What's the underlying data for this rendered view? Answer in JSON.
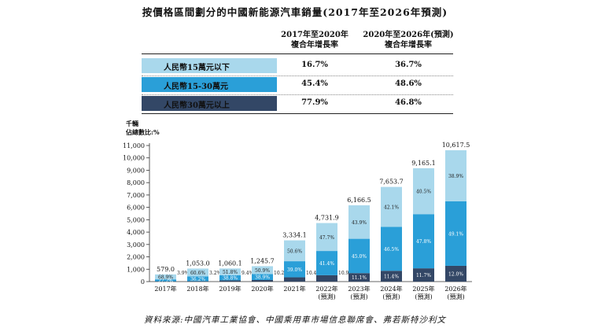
{
  "title": "按價格區間劃分的中國新能源汽車銷量(2017年至2026年預測)",
  "cagr_table": {
    "headers": [
      [
        "2017年至2020年",
        "複合年增長率"
      ],
      [
        "2020年至2026年(預測)",
        "複合年增長率"
      ]
    ],
    "rows": [
      {
        "label": "人民幣15萬元以下",
        "cagr_2017_2020": "16.7%",
        "cagr_2020_2026": "36.7%",
        "color": "#a9d8ec"
      },
      {
        "label": "人民幣15-30萬元",
        "cagr_2017_2020": "45.4%",
        "cagr_2020_2026": "48.6%",
        "color": "#2a9fd8"
      },
      {
        "label": "人民幣30萬元以上",
        "cagr_2017_2020": "77.9%",
        "cagr_2020_2026": "46.8%",
        "color": "#334766"
      }
    ]
  },
  "units": {
    "line1": "千輛",
    "line2": "佔總數比:%"
  },
  "source": "資料來源:中國汽車工業協會、中國乘用車市場信息聯席會、弗若斯特沙利文",
  "chart_data": {
    "type": "bar",
    "stacked": true,
    "ylim": [
      0,
      11000
    ],
    "yticks": [
      "0",
      "1,000",
      "2,000",
      "3,000",
      "4,000",
      "5,000",
      "6,000",
      "7,000",
      "8,000",
      "9,000",
      "10,000",
      "11,000"
    ],
    "ytick_values": [
      0,
      1000,
      2000,
      3000,
      4000,
      5000,
      6000,
      7000,
      8000,
      9000,
      10000,
      11000
    ],
    "categories": [
      [
        "2017年"
      ],
      [
        "2018年"
      ],
      [
        "2019年"
      ],
      [
        "2020年"
      ],
      [
        "2021年"
      ],
      [
        "2022年",
        "(預測)"
      ],
      [
        "2023年",
        "(預測)"
      ],
      [
        "2024年",
        "(預測)"
      ],
      [
        "2025年",
        "(預測)"
      ],
      [
        "2026年",
        "(預測)"
      ]
    ],
    "totals": [
      579.0,
      1053.0,
      1060.1,
      1245.7,
      3334.1,
      4731.9,
      6166.5,
      7653.7,
      9165.1,
      10617.5
    ],
    "total_labels": [
      "579.0",
      "1,053.0",
      "1,060.1",
      "1,245.7",
      "3,334.1",
      "4,731.9",
      "6,166.5",
      "7,653.7",
      "9,165.1",
      "10,617.5"
    ],
    "series": [
      {
        "name": "人民幣30萬元以上",
        "color": "#334766",
        "text_color": "#ffffff",
        "shares": [
          3.9,
          3.2,
          9.4,
          10.2,
          10.4,
          10.9,
          11.1,
          11.4,
          11.7,
          12.0
        ],
        "labels": [
          "3.9%",
          "3.2%",
          "9.4%",
          "10.2%",
          "10.4%",
          "10.9%",
          "11.1%",
          "11.4%",
          "11.7%",
          "12.0%"
        ]
      },
      {
        "name": "人民幣15-30萬元",
        "color": "#2a9fd8",
        "text_color": "#ffffff",
        "shares": [
          27.2,
          36.2,
          38.8,
          38.9,
          39.0,
          41.4,
          45.0,
          46.5,
          47.8,
          49.1
        ],
        "labels": [
          "27.2%",
          "36.2%",
          "38.8%",
          "38.9%",
          "39.0%",
          "41.4%",
          "45.0%",
          "46.5%",
          "47.8%",
          "49.1%"
        ]
      },
      {
        "name": "人民幣15萬元以下",
        "color": "#a9d8ec",
        "text_color": "#222222",
        "shares": [
          68.9,
          60.6,
          51.8,
          50.9,
          50.6,
          47.7,
          43.9,
          42.1,
          40.5,
          38.9
        ],
        "labels": [
          "68.9%",
          "60.6%",
          "51.8%",
          "50.9%",
          "50.6%",
          "47.7%",
          "43.9%",
          "42.1%",
          "40.5%",
          "38.9%"
        ]
      }
    ]
  }
}
